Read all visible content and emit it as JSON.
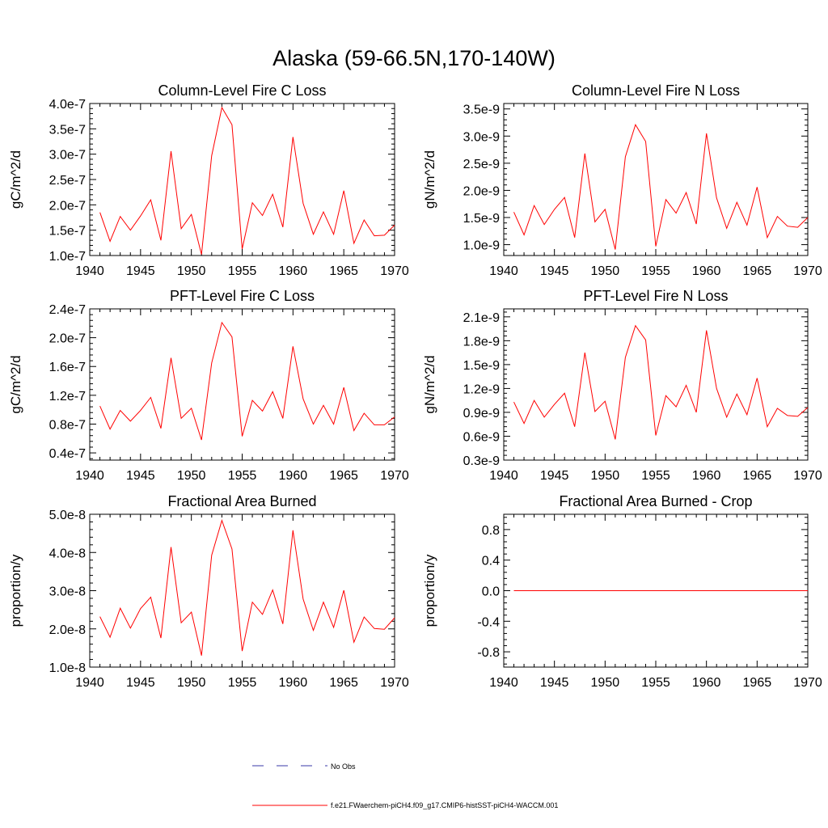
{
  "figure": {
    "title": "Alaska (59-66.5N,170-140W)"
  },
  "legend": {
    "entries": [
      {
        "label": "No Obs",
        "color": "#3a3aaa",
        "style": "dashed"
      },
      {
        "label": "f.e21.FWaerchem-piCH4.f09_g17.CMIP6-histSST-piCH4-WACCM.001",
        "color": "#ff0000",
        "style": "solid"
      }
    ]
  },
  "chart_data": [
    {
      "type": "line",
      "title": "Column-Level Fire C Loss",
      "ylabel": "gC/m^2/d",
      "xlim": [
        1940,
        1970
      ],
      "ylim": [
        1e-07,
        4e-07
      ],
      "xticks": [
        1940,
        1945,
        1950,
        1955,
        1960,
        1965,
        1970
      ],
      "xtick_labels": [
        "1940",
        "1945",
        "1950",
        "1955",
        "1960",
        "1965",
        "1970"
      ],
      "yticks": [
        1e-07,
        1.5e-07,
        2e-07,
        2.5e-07,
        3e-07,
        3.5e-07,
        4e-07
      ],
      "ytick_labels": [
        "1.0e-7",
        "1.5e-7",
        "2.0e-7",
        "2.5e-7",
        "3.0e-7",
        "3.5e-7",
        "4.0e-7"
      ],
      "grid": false,
      "series": [
        {
          "name": "f.e21.FWaerchem-piCH4.f09_g17.CMIP6-histSST-piCH4-WACCM.001",
          "color": "#ff0000",
          "x": [
            1941,
            1942,
            1943,
            1944,
            1945,
            1946,
            1947,
            1948,
            1949,
            1950,
            1951,
            1952,
            1953,
            1954,
            1955,
            1956,
            1957,
            1958,
            1959,
            1960,
            1961,
            1962,
            1963,
            1964,
            1965,
            1966,
            1967,
            1968,
            1969,
            1970
          ],
          "y": [
            1.85e-07,
            1.28e-07,
            1.77e-07,
            1.5e-07,
            1.78e-07,
            2.1e-07,
            1.3e-07,
            3.06e-07,
            1.53e-07,
            1.81e-07,
            1.02e-07,
            2.97e-07,
            3.92e-07,
            3.58e-07,
            1.13e-07,
            2.04e-07,
            1.79e-07,
            2.21e-07,
            1.56e-07,
            3.34e-07,
            2.03e-07,
            1.42e-07,
            1.86e-07,
            1.42e-07,
            2.28e-07,
            1.24e-07,
            1.7e-07,
            1.39e-07,
            1.4e-07,
            1.6e-07
          ]
        }
      ]
    },
    {
      "type": "line",
      "title": "Column-Level Fire N Loss",
      "ylabel": "gN/m^2/d",
      "xlim": [
        1940,
        1970
      ],
      "ylim": [
        8e-10,
        3.6e-09
      ],
      "xticks": [
        1940,
        1945,
        1950,
        1955,
        1960,
        1965,
        1970
      ],
      "xtick_labels": [
        "1940",
        "1945",
        "1950",
        "1955",
        "1960",
        "1965",
        "1970"
      ],
      "yticks": [
        1e-09,
        1.5e-09,
        2e-09,
        2.5e-09,
        3e-09,
        3.5e-09
      ],
      "ytick_labels": [
        "1.0e-9",
        "1.5e-9",
        "2.0e-9",
        "2.5e-9",
        "3.0e-9",
        "3.5e-9"
      ],
      "grid": false,
      "series": [
        {
          "name": "f.e21.FWaerchem-piCH4.f09_g17.CMIP6-histSST-piCH4-WACCM.001",
          "color": "#ff0000",
          "x": [
            1941,
            1942,
            1943,
            1944,
            1945,
            1946,
            1947,
            1948,
            1949,
            1950,
            1951,
            1952,
            1953,
            1954,
            1955,
            1956,
            1957,
            1958,
            1959,
            1960,
            1961,
            1962,
            1963,
            1964,
            1965,
            1966,
            1967,
            1968,
            1969,
            1970
          ],
          "y": [
            1.6e-09,
            1.18e-09,
            1.72e-09,
            1.37e-09,
            1.65e-09,
            1.87e-09,
            1.13e-09,
            2.68e-09,
            1.42e-09,
            1.65e-09,
            9.1e-10,
            2.62e-09,
            3.21e-09,
            2.9e-09,
            9.7e-10,
            1.83e-09,
            1.58e-09,
            1.96e-09,
            1.38e-09,
            3.05e-09,
            1.86e-09,
            1.3e-09,
            1.78e-09,
            1.36e-09,
            2.06e-09,
            1.13e-09,
            1.52e-09,
            1.34e-09,
            1.32e-09,
            1.5e-09
          ]
        }
      ]
    },
    {
      "type": "line",
      "title": "PFT-Level Fire C Loss",
      "ylabel": "gC/m^2/d",
      "xlim": [
        1940,
        1970
      ],
      "ylim": [
        3e-08,
        2.4e-07
      ],
      "xticks": [
        1940,
        1945,
        1950,
        1955,
        1960,
        1965,
        1970
      ],
      "xtick_labels": [
        "1940",
        "1945",
        "1950",
        "1955",
        "1960",
        "1965",
        "1970"
      ],
      "yticks": [
        4e-08,
        8e-08,
        1.2e-07,
        1.6e-07,
        2e-07,
        2.4e-07
      ],
      "ytick_labels": [
        "0.4e-7",
        "0.8e-7",
        "1.2e-7",
        "1.6e-7",
        "2.0e-7",
        "2.4e-7"
      ],
      "grid": false,
      "series": [
        {
          "name": "f.e21.FWaerchem-piCH4.f09_g17.CMIP6-histSST-piCH4-WACCM.001",
          "color": "#ff0000",
          "x": [
            1941,
            1942,
            1943,
            1944,
            1945,
            1946,
            1947,
            1948,
            1949,
            1950,
            1951,
            1952,
            1953,
            1954,
            1955,
            1956,
            1957,
            1958,
            1959,
            1960,
            1961,
            1962,
            1963,
            1964,
            1965,
            1966,
            1967,
            1968,
            1969,
            1970
          ],
          "y": [
            1.05e-07,
            7.3e-08,
            9.9e-08,
            8.4e-08,
            9.9e-08,
            1.17e-07,
            7.4e-08,
            1.72e-07,
            8.8e-08,
            1.02e-07,
            5.8e-08,
            1.65e-07,
            2.21e-07,
            2.01e-07,
            6.3e-08,
            1.13e-07,
            9.8e-08,
            1.25e-07,
            8.8e-08,
            1.88e-07,
            1.15e-07,
            8e-08,
            1.06e-07,
            8e-08,
            1.31e-07,
            7.1e-08,
            9.5e-08,
            7.9e-08,
            7.9e-08,
            9e-08
          ]
        }
      ]
    },
    {
      "type": "line",
      "title": "PFT-Level Fire N Loss",
      "ylabel": "gN/m^2/d",
      "xlim": [
        1940,
        1970
      ],
      "ylim": [
        3e-10,
        2.2e-09
      ],
      "xticks": [
        1940,
        1945,
        1950,
        1955,
        1960,
        1965,
        1970
      ],
      "xtick_labels": [
        "1940",
        "1945",
        "1950",
        "1955",
        "1960",
        "1965",
        "1970"
      ],
      "yticks": [
        3e-10,
        6e-10,
        9e-10,
        1.2e-09,
        1.5e-09,
        1.8e-09,
        2.1e-09
      ],
      "ytick_labels": [
        "0.3e-9",
        "0.6e-9",
        "0.9e-9",
        "1.2e-9",
        "1.5e-9",
        "1.8e-9",
        "2.1e-9"
      ],
      "grid": false,
      "series": [
        {
          "name": "f.e21.FWaerchem-piCH4.f09_g17.CMIP6-histSST-piCH4-WACCM.001",
          "color": "#ff0000",
          "x": [
            1941,
            1942,
            1943,
            1944,
            1945,
            1946,
            1947,
            1948,
            1949,
            1950,
            1951,
            1952,
            1953,
            1954,
            1955,
            1956,
            1957,
            1958,
            1959,
            1960,
            1961,
            1962,
            1963,
            1964,
            1965,
            1966,
            1967,
            1968,
            1969,
            1970
          ],
          "y": [
            1.03e-09,
            7.6e-10,
            1.05e-09,
            8.4e-10,
            1e-09,
            1.14e-09,
            7.2e-10,
            1.65e-09,
            9.1e-10,
            1.04e-09,
            5.6e-10,
            1.59e-09,
            1.99e-09,
            1.81e-09,
            6.1e-10,
            1.11e-09,
            9.7e-10,
            1.24e-09,
            9e-10,
            1.93e-09,
            1.2e-09,
            8.4e-10,
            1.13e-09,
            8.7e-10,
            1.33e-09,
            7.2e-10,
            9.5e-10,
            8.6e-10,
            8.5e-10,
            9.6e-10
          ]
        }
      ]
    },
    {
      "type": "line",
      "title": "Fractional Area Burned",
      "ylabel": "proportion/y",
      "xlim": [
        1940,
        1970
      ],
      "ylim": [
        1e-08,
        5e-08
      ],
      "xticks": [
        1940,
        1945,
        1950,
        1955,
        1960,
        1965,
        1970
      ],
      "xtick_labels": [
        "1940",
        "1945",
        "1950",
        "1955",
        "1960",
        "1965",
        "1970"
      ],
      "yticks": [
        1e-08,
        2e-08,
        3e-08,
        4e-08,
        5e-08
      ],
      "ytick_labels": [
        "1.0e-8",
        "2.0e-8",
        "3.0e-8",
        "4.0e-8",
        "5.0e-8"
      ],
      "grid": false,
      "series": [
        {
          "name": "f.e21.FWaerchem-piCH4.f09_g17.CMIP6-histSST-piCH4-WACCM.001",
          "color": "#ff0000",
          "x": [
            1941,
            1942,
            1943,
            1944,
            1945,
            1946,
            1947,
            1948,
            1949,
            1950,
            1951,
            1952,
            1953,
            1954,
            1955,
            1956,
            1957,
            1958,
            1959,
            1960,
            1961,
            1962,
            1963,
            1964,
            1965,
            1966,
            1967,
            1968,
            1969,
            1970
          ],
          "y": [
            2.32e-08,
            1.78e-08,
            2.54e-08,
            2.02e-08,
            2.53e-08,
            2.83e-08,
            1.76e-08,
            4.14e-08,
            2.16e-08,
            2.44e-08,
            1.3e-08,
            3.93e-08,
            4.84e-08,
            4.09e-08,
            1.42e-08,
            2.7e-08,
            2.38e-08,
            3.02e-08,
            2.13e-08,
            4.58e-08,
            2.78e-08,
            1.96e-08,
            2.7e-08,
            2.04e-08,
            3.01e-08,
            1.65e-08,
            2.31e-08,
            2.01e-08,
            1.99e-08,
            2.29e-08
          ]
        }
      ]
    },
    {
      "type": "line",
      "title": "Fractional Area Burned - Crop",
      "ylabel": "proportion/y",
      "xlim": [
        1940,
        1970
      ],
      "ylim": [
        -1.0,
        1.0
      ],
      "xticks": [
        1940,
        1945,
        1950,
        1955,
        1960,
        1965,
        1970
      ],
      "xtick_labels": [
        "1940",
        "1945",
        "1950",
        "1955",
        "1960",
        "1965",
        "1970"
      ],
      "yticks": [
        -0.8,
        -0.4,
        0.0,
        0.4,
        0.8
      ],
      "ytick_labels": [
        "-0.8",
        "-0.4",
        "0.0",
        "0.4",
        "0.8"
      ],
      "grid": false,
      "series": [
        {
          "name": "f.e21.FWaerchem-piCH4.f09_g17.CMIP6-histSST-piCH4-WACCM.001",
          "color": "#ff0000",
          "x": [
            1941,
            1942,
            1943,
            1944,
            1945,
            1946,
            1947,
            1948,
            1949,
            1950,
            1951,
            1952,
            1953,
            1954,
            1955,
            1956,
            1957,
            1958,
            1959,
            1960,
            1961,
            1962,
            1963,
            1964,
            1965,
            1966,
            1967,
            1968,
            1969,
            1970
          ],
          "y": [
            0,
            0,
            0,
            0,
            0,
            0,
            0,
            0,
            0,
            0,
            0,
            0,
            0,
            0,
            0,
            0,
            0,
            0,
            0,
            0,
            0,
            0,
            0,
            0,
            0,
            0,
            0,
            0,
            0,
            0
          ]
        }
      ]
    }
  ]
}
